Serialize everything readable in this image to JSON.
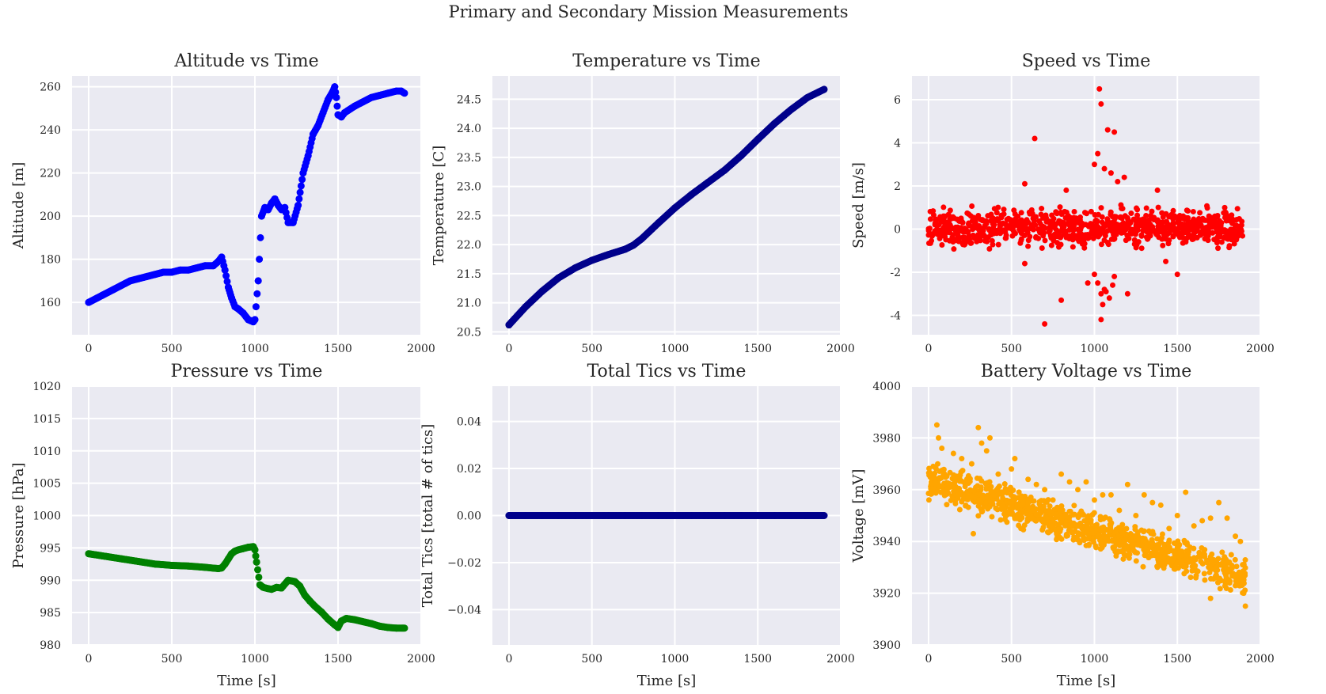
{
  "figure": {
    "suptitle": "Primary and Secondary Mission Measurements"
  },
  "chart_data": [
    {
      "type": "scatter",
      "title": "Altitude vs Time",
      "xlabel": "",
      "ylabel": "Altitude [m]",
      "xlim": [
        -100,
        2000
      ],
      "ylim": [
        145,
        265
      ],
      "xticks": [
        0,
        500,
        1000,
        1500,
        2000
      ],
      "yticks": [
        160,
        180,
        200,
        220,
        240,
        260
      ],
      "color": "#0000ff",
      "marker_size": 4.5,
      "grid": true,
      "x": [
        0,
        50,
        100,
        150,
        200,
        250,
        300,
        350,
        400,
        450,
        500,
        550,
        600,
        650,
        700,
        750,
        780,
        800,
        820,
        840,
        860,
        880,
        900,
        930,
        960,
        990,
        1000,
        1020,
        1040,
        1060,
        1080,
        1100,
        1120,
        1140,
        1160,
        1180,
        1200,
        1230,
        1260,
        1290,
        1320,
        1350,
        1380,
        1410,
        1440,
        1470,
        1480,
        1490,
        1500,
        1520,
        1540,
        1560,
        1600,
        1650,
        1700,
        1750,
        1800,
        1850,
        1880,
        1900
      ],
      "y": [
        160,
        162,
        164,
        166,
        168,
        170,
        171,
        172,
        173,
        174,
        174,
        175,
        175,
        176,
        177,
        177,
        179,
        181,
        175,
        167,
        162,
        158,
        157,
        155,
        152,
        151,
        152,
        170,
        200,
        204,
        203,
        206,
        208,
        205,
        203,
        204,
        197,
        197,
        205,
        220,
        228,
        238,
        242,
        248,
        254,
        258,
        260,
        255,
        247,
        246,
        248,
        249,
        251,
        253,
        255,
        256,
        257,
        258,
        258,
        257
      ]
    },
    {
      "type": "scatter",
      "title": "Temperature vs Time",
      "xlabel": "",
      "ylabel": "Temperature [C]",
      "xlim": [
        -100,
        2000
      ],
      "ylim": [
        20.45,
        24.9
      ],
      "xticks": [
        0,
        500,
        1000,
        1500,
        2000
      ],
      "yticks": [
        20.5,
        21.0,
        21.5,
        22.0,
        22.5,
        23.0,
        23.5,
        24.0,
        24.5
      ],
      "color": "#00008b",
      "marker_size": 4.5,
      "grid": true,
      "x": [
        0,
        100,
        200,
        300,
        400,
        500,
        600,
        700,
        750,
        800,
        900,
        1000,
        1100,
        1200,
        1300,
        1400,
        1500,
        1600,
        1700,
        1800,
        1900
      ],
      "y": [
        20.62,
        20.93,
        21.2,
        21.43,
        21.6,
        21.73,
        21.83,
        21.92,
        21.99,
        22.1,
        22.37,
        22.63,
        22.86,
        23.07,
        23.28,
        23.53,
        23.81,
        24.08,
        24.32,
        24.53,
        24.67
      ]
    },
    {
      "type": "scatter",
      "title": "Speed vs Time",
      "xlabel": "",
      "ylabel": "Speed [m/s]",
      "xlim": [
        -100,
        2000
      ],
      "ylim": [
        -4.9,
        7.1
      ],
      "xticks": [
        0,
        500,
        1000,
        1500,
        2000
      ],
      "yticks": [
        -4,
        -2,
        0,
        2,
        4,
        6
      ],
      "color": "#ff0000",
      "marker_size": 3.5,
      "grid": true,
      "x": [
        1030,
        1040,
        1080,
        1120,
        640,
        1040,
        700,
        580,
        1000,
        1020,
        1060,
        1100,
        1140,
        1180,
        1040,
        1060,
        1090,
        1110,
        1000,
        1020,
        960,
        800,
        830,
        1380,
        1500,
        1200,
        1430,
        580,
        1050,
        1070,
        1120
      ],
      "y": [
        6.5,
        5.8,
        4.6,
        4.5,
        4.2,
        -4.2,
        -4.4,
        2.1,
        3.0,
        3.5,
        2.8,
        2.6,
        2.2,
        2.4,
        -3.0,
        -2.8,
        -3.2,
        -2.6,
        -2.1,
        -2.5,
        -2.5,
        -3.3,
        1.8,
        1.8,
        -2.1,
        -3.0,
        -1.5,
        -1.6,
        -3.5,
        -2.9,
        -2.2
      ],
      "noise_band": {
        "x": [
          0,
          1900
        ],
        "y": [
          -1.0,
          1.0
        ]
      }
    },
    {
      "type": "scatter",
      "title": "Pressure vs Time",
      "xlabel": "Time [s]",
      "ylabel": "Pressure [hPa]",
      "xlim": [
        -100,
        2000
      ],
      "ylim": [
        980,
        1020
      ],
      "xticks": [
        0,
        500,
        1000,
        1500,
        2000
      ],
      "yticks": [
        980,
        985,
        990,
        995,
        1000,
        1005,
        1010,
        1015,
        1020
      ],
      "color": "#008000",
      "marker_size": 4.5,
      "grid": true,
      "x": [
        0,
        100,
        200,
        300,
        400,
        500,
        600,
        700,
        780,
        800,
        820,
        840,
        860,
        880,
        900,
        930,
        960,
        990,
        1000,
        1010,
        1030,
        1050,
        1080,
        1100,
        1130,
        1160,
        1200,
        1240,
        1270,
        1300,
        1330,
        1360,
        1400,
        1440,
        1480,
        1500,
        1520,
        1550,
        1600,
        1650,
        1700,
        1750,
        1800,
        1850,
        1900
      ],
      "y": [
        994.1,
        993.7,
        993.3,
        992.9,
        992.5,
        992.3,
        992.2,
        992.0,
        991.8,
        991.9,
        992.5,
        993.3,
        994.1,
        994.5,
        994.7,
        994.9,
        995.1,
        995.2,
        994.7,
        992.8,
        989.3,
        988.9,
        988.7,
        988.6,
        988.9,
        988.8,
        990.0,
        989.8,
        989.1,
        987.7,
        986.8,
        986.0,
        985.1,
        984.0,
        983.1,
        982.7,
        983.7,
        984.1,
        983.9,
        983.6,
        983.3,
        982.9,
        982.7,
        982.6,
        982.6
      ]
    },
    {
      "type": "scatter",
      "title": "Total Tics vs Time",
      "xlabel": "Time [s]",
      "ylabel": "Total Tics [total # of tics]",
      "xlim": [
        -100,
        2000
      ],
      "ylim": [
        -0.055,
        0.055
      ],
      "xticks": [
        0,
        500,
        1000,
        1500,
        2000
      ],
      "yticks": [
        -0.04,
        -0.02,
        0.0,
        0.02,
        0.04
      ],
      "ytick_labels": [
        "−0.04",
        "−0.02",
        "0.00",
        "0.02",
        "0.04"
      ],
      "color": "#00008b",
      "marker_size": 4.5,
      "grid": true,
      "x": [
        0,
        100,
        200,
        300,
        400,
        500,
        600,
        700,
        800,
        900,
        1000,
        1100,
        1200,
        1300,
        1400,
        1500,
        1600,
        1700,
        1800,
        1900
      ],
      "y": [
        0,
        0,
        0,
        0,
        0,
        0,
        0,
        0,
        0,
        0,
        0,
        0,
        0,
        0,
        0,
        0,
        0,
        0,
        0,
        0
      ]
    },
    {
      "type": "scatter",
      "title": "Battery Voltage vs Time",
      "xlabel": "Time [s]",
      "ylabel": "Voltage [mV]",
      "xlim": [
        -100,
        2000
      ],
      "ylim": [
        3900,
        4000
      ],
      "xticks": [
        0,
        500,
        1000,
        1500,
        2000
      ],
      "yticks": [
        3900,
        3920,
        3940,
        3960,
        3980,
        4000
      ],
      "color": "#ffa500",
      "marker_size": 3.5,
      "grid": true,
      "x": [
        50,
        60,
        80,
        150,
        200,
        260,
        300,
        320,
        350,
        370,
        420,
        500,
        520,
        600,
        650,
        700,
        750,
        800,
        850,
        900,
        950,
        1000,
        1050,
        1100,
        1150,
        1200,
        1250,
        1300,
        1350,
        1400,
        1450,
        1500,
        1550,
        1600,
        1650,
        1700,
        1750,
        1800,
        1850,
        1880,
        1900,
        1910,
        270,
        550,
        1380,
        1700
      ],
      "y": [
        3985,
        3980,
        3976,
        3974,
        3972,
        3970,
        3984,
        3978,
        3975,
        3980,
        3966,
        3968,
        3972,
        3964,
        3962,
        3960,
        3956,
        3966,
        3963,
        3960,
        3963,
        3956,
        3958,
        3958,
        3952,
        3962,
        3950,
        3958,
        3955,
        3954,
        3945,
        3950,
        3959,
        3946,
        3948,
        3949,
        3955,
        3949,
        3942,
        3940,
        3920,
        3915,
        3943,
        3950,
        3930,
        3918
      ],
      "trend_band": {
        "x": [
          0,
          1910
        ],
        "y_start": [
          3955,
          3972
        ],
        "y_end": [
          3918,
          3934
        ]
      }
    }
  ]
}
